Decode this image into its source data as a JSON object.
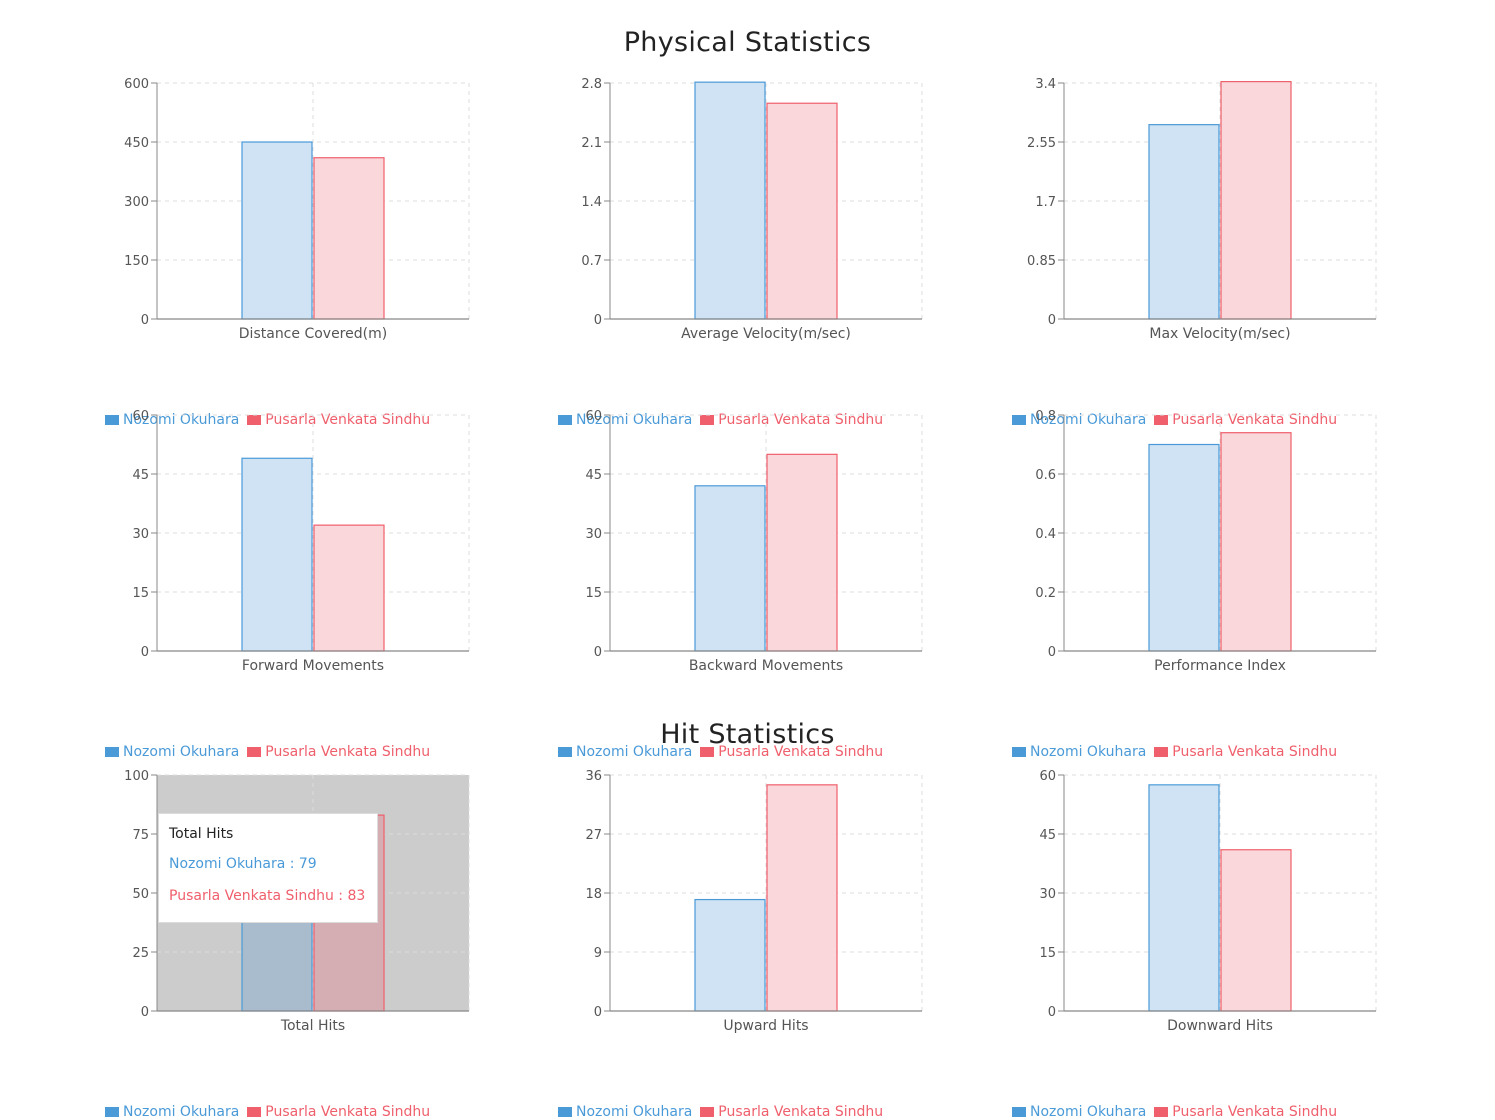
{
  "titles": {
    "physical": "Physical Statistics",
    "hit": "Hit Statistics"
  },
  "colors": {
    "series1_fill": "#cfe3f5",
    "series1_stroke": "#4a9ad8",
    "series2_fill": "#fad7db",
    "series2_stroke": "#ef5f6c",
    "grid": "#dddddd",
    "axis": "#888888"
  },
  "legend": {
    "series1": "Nozomi Okuhara",
    "series2": "Pusarla Venkata Sindhu"
  },
  "tooltip": {
    "title": "Total Hits",
    "line1": "Nozomi Okuhara : 79",
    "line2": "Pusarla Venkata Sindhu : 83"
  },
  "chart_data": [
    {
      "type": "bar",
      "xlabel": "Distance Covered(m)",
      "ylim": [
        0,
        600
      ],
      "yticks": [
        "0",
        "150",
        "300",
        "450",
        "600"
      ],
      "series": [
        {
          "name": "Nozomi Okuhara",
          "values": [
            450
          ]
        },
        {
          "name": "Pusarla Venkata Sindhu",
          "values": [
            410
          ]
        }
      ]
    },
    {
      "type": "bar",
      "xlabel": "Average Velocity(m/sec)",
      "ylim": [
        0,
        2.8
      ],
      "yticks": [
        "0",
        "0.7",
        "1.4",
        "2.1",
        "2.8"
      ],
      "series": [
        {
          "name": "Nozomi Okuhara",
          "values": [
            2.81
          ]
        },
        {
          "name": "Pusarla Venkata Sindhu",
          "values": [
            2.56
          ]
        }
      ]
    },
    {
      "type": "bar",
      "xlabel": "Max Velocity(m/sec)",
      "ylim": [
        0,
        3.4
      ],
      "yticks": [
        "0",
        "0.85",
        "1.7",
        "2.55",
        "3.4"
      ],
      "series": [
        {
          "name": "Nozomi Okuhara",
          "values": [
            2.8
          ]
        },
        {
          "name": "Pusarla Venkata Sindhu",
          "values": [
            3.42
          ]
        }
      ]
    },
    {
      "type": "bar",
      "xlabel": "Forward Movements",
      "ylim": [
        0,
        60
      ],
      "yticks": [
        "0",
        "15",
        "30",
        "45",
        "60"
      ],
      "series": [
        {
          "name": "Nozomi Okuhara",
          "values": [
            49
          ]
        },
        {
          "name": "Pusarla Venkata Sindhu",
          "values": [
            32
          ]
        }
      ]
    },
    {
      "type": "bar",
      "xlabel": "Backward Movements",
      "ylim": [
        0,
        60
      ],
      "yticks": [
        "0",
        "15",
        "30",
        "45",
        "60"
      ],
      "series": [
        {
          "name": "Nozomi Okuhara",
          "values": [
            42
          ]
        },
        {
          "name": "Pusarla Venkata Sindhu",
          "values": [
            50
          ]
        }
      ]
    },
    {
      "type": "bar",
      "xlabel": "Performance Index",
      "ylim": [
        0,
        0.8
      ],
      "yticks": [
        "0",
        "0.2",
        "0.4",
        "0.6",
        "0.8"
      ],
      "series": [
        {
          "name": "Nozomi Okuhara",
          "values": [
            0.7
          ]
        },
        {
          "name": "Pusarla Venkata Sindhu",
          "values": [
            0.74
          ]
        }
      ]
    },
    {
      "type": "bar",
      "xlabel": "Total Hits",
      "ylim": [
        0,
        100
      ],
      "yticks": [
        "0",
        "25",
        "50",
        "75",
        "100"
      ],
      "series": [
        {
          "name": "Nozomi Okuhara",
          "values": [
            79
          ]
        },
        {
          "name": "Pusarla Venkata Sindhu",
          "values": [
            83
          ]
        }
      ]
    },
    {
      "type": "bar",
      "xlabel": "Upward Hits",
      "ylim": [
        0,
        36
      ],
      "yticks": [
        "0",
        "9",
        "18",
        "27",
        "36"
      ],
      "series": [
        {
          "name": "Nozomi Okuhara",
          "values": [
            17
          ]
        },
        {
          "name": "Pusarla Venkata Sindhu",
          "values": [
            34.5
          ]
        }
      ]
    },
    {
      "type": "bar",
      "xlabel": "Downward Hits",
      "ylim": [
        0,
        60
      ],
      "yticks": [
        "0",
        "15",
        "30",
        "45",
        "60"
      ],
      "series": [
        {
          "name": "Nozomi Okuhara",
          "values": [
            57.5
          ]
        },
        {
          "name": "Pusarla Venkata Sindhu",
          "values": [
            41
          ]
        }
      ]
    }
  ]
}
